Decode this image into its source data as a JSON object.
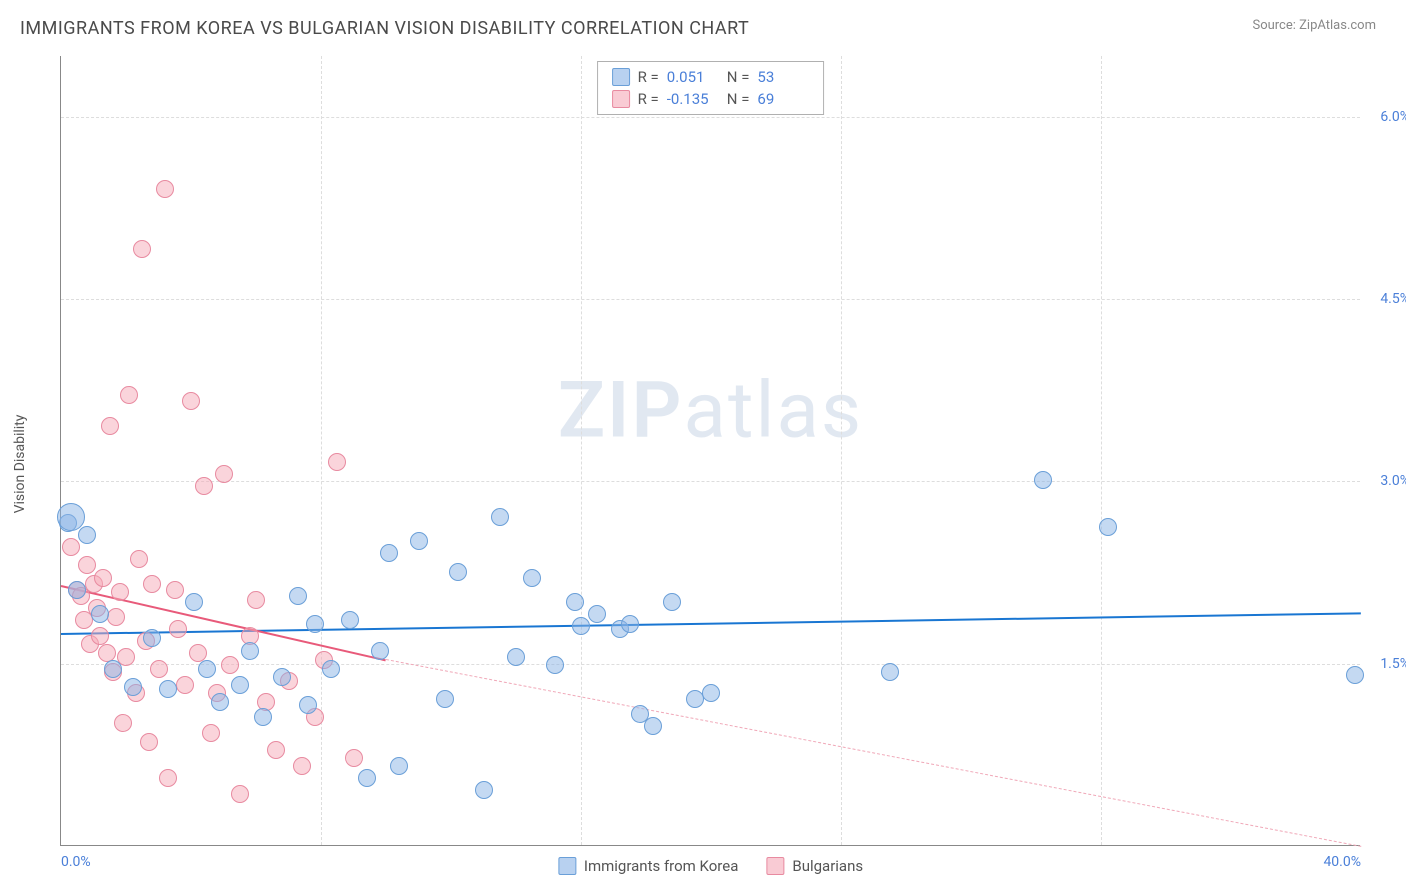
{
  "header": {
    "title": "IMMIGRANTS FROM KOREA VS BULGARIAN VISION DISABILITY CORRELATION CHART",
    "source": "Source: ZipAtlas.com"
  },
  "axes": {
    "y_label": "Vision Disability",
    "x_min": 0.0,
    "x_max": 40.0,
    "y_min": 0.0,
    "y_max": 6.5,
    "y_ticks": [
      1.5,
      3.0,
      4.5,
      6.0
    ],
    "y_tick_labels": [
      "1.5%",
      "3.0%",
      "4.5%",
      "6.0%"
    ],
    "x_ticks": [
      0.0,
      40.0
    ],
    "x_tick_labels": [
      "0.0%",
      "40.0%"
    ],
    "x_gridlines": [
      8,
      16,
      24,
      32
    ]
  },
  "stats": {
    "series1": {
      "r_label": "R =",
      "r_val": "0.051",
      "n_label": "N =",
      "n_val": "53"
    },
    "series2": {
      "r_label": "R =",
      "r_val": "-0.135",
      "n_label": "N =",
      "n_val": "69"
    }
  },
  "legend": {
    "series1": "Immigrants from Korea",
    "series2": "Bulgarians"
  },
  "watermark": {
    "part1": "ZIP",
    "part2": "atlas"
  },
  "series_blue": {
    "color_fill": "rgba(137,179,230,0.5)",
    "color_stroke": "#6a9fd8",
    "marker_size": 18,
    "trend": {
      "y_at_x0": 1.75,
      "y_at_xmax": 1.92,
      "color": "#1976d2"
    },
    "points": [
      [
        0.2,
        2.65
      ],
      [
        0.5,
        2.1
      ],
      [
        0.8,
        2.55
      ],
      [
        1.2,
        1.9
      ],
      [
        1.6,
        1.45
      ],
      [
        2.2,
        1.3
      ],
      [
        2.8,
        1.7
      ],
      [
        3.3,
        1.28
      ],
      [
        4.1,
        2.0
      ],
      [
        4.5,
        1.45
      ],
      [
        4.9,
        1.18
      ],
      [
        5.5,
        1.32
      ],
      [
        5.8,
        1.6
      ],
      [
        6.2,
        1.05
      ],
      [
        6.8,
        1.38
      ],
      [
        7.3,
        2.05
      ],
      [
        7.6,
        1.15
      ],
      [
        7.8,
        1.82
      ],
      [
        8.3,
        1.45
      ],
      [
        8.9,
        1.85
      ],
      [
        9.4,
        0.55
      ],
      [
        9.8,
        1.6
      ],
      [
        10.1,
        2.4
      ],
      [
        10.4,
        0.65
      ],
      [
        11.0,
        2.5
      ],
      [
        11.8,
        1.2
      ],
      [
        12.2,
        2.25
      ],
      [
        13.0,
        0.45
      ],
      [
        13.5,
        2.7
      ],
      [
        14.0,
        1.55
      ],
      [
        14.5,
        2.2
      ],
      [
        15.2,
        1.48
      ],
      [
        15.8,
        2.0
      ],
      [
        16.0,
        1.8
      ],
      [
        16.5,
        1.9
      ],
      [
        17.2,
        1.78
      ],
      [
        17.5,
        1.82
      ],
      [
        17.8,
        1.08
      ],
      [
        18.2,
        0.98
      ],
      [
        18.8,
        2.0
      ],
      [
        19.5,
        1.2
      ],
      [
        20.0,
        1.25
      ],
      [
        25.5,
        1.42
      ],
      [
        30.2,
        3.0
      ],
      [
        32.2,
        2.62
      ],
      [
        39.8,
        1.4
      ]
    ],
    "big_points": [
      [
        0.3,
        2.7,
        28
      ]
    ]
  },
  "series_pink": {
    "color_fill": "rgba(245,169,184,0.5)",
    "color_stroke": "#e88aa0",
    "marker_size": 18,
    "trend": {
      "y_at_x0": 2.15,
      "y_at_xmax": -0.3,
      "solid_until_x": 10.0,
      "color": "#e85a7a"
    },
    "points": [
      [
        0.3,
        2.45
      ],
      [
        0.5,
        2.1
      ],
      [
        0.6,
        2.05
      ],
      [
        0.7,
        1.85
      ],
      [
        0.8,
        2.3
      ],
      [
        0.9,
        1.65
      ],
      [
        1.0,
        2.15
      ],
      [
        1.1,
        1.95
      ],
      [
        1.2,
        1.72
      ],
      [
        1.3,
        2.2
      ],
      [
        1.4,
        1.58
      ],
      [
        1.5,
        3.45
      ],
      [
        1.6,
        1.42
      ],
      [
        1.7,
        1.88
      ],
      [
        1.8,
        2.08
      ],
      [
        1.9,
        1.0
      ],
      [
        2.0,
        1.55
      ],
      [
        2.1,
        3.7
      ],
      [
        2.3,
        1.25
      ],
      [
        2.4,
        2.35
      ],
      [
        2.5,
        4.9
      ],
      [
        2.6,
        1.68
      ],
      [
        2.7,
        0.85
      ],
      [
        2.8,
        2.15
      ],
      [
        3.0,
        1.45
      ],
      [
        3.2,
        5.4
      ],
      [
        3.3,
        0.55
      ],
      [
        3.5,
        2.1
      ],
      [
        3.6,
        1.78
      ],
      [
        3.8,
        1.32
      ],
      [
        4.0,
        3.65
      ],
      [
        4.2,
        1.58
      ],
      [
        4.4,
        2.95
      ],
      [
        4.6,
        0.92
      ],
      [
        4.8,
        1.25
      ],
      [
        5.0,
        3.05
      ],
      [
        5.2,
        1.48
      ],
      [
        5.5,
        0.42
      ],
      [
        5.8,
        1.72
      ],
      [
        6.0,
        2.02
      ],
      [
        6.3,
        1.18
      ],
      [
        6.6,
        0.78
      ],
      [
        7.0,
        1.35
      ],
      [
        7.4,
        0.65
      ],
      [
        7.8,
        1.05
      ],
      [
        8.1,
        1.52
      ],
      [
        8.5,
        3.15
      ],
      [
        9.0,
        0.72
      ]
    ]
  }
}
